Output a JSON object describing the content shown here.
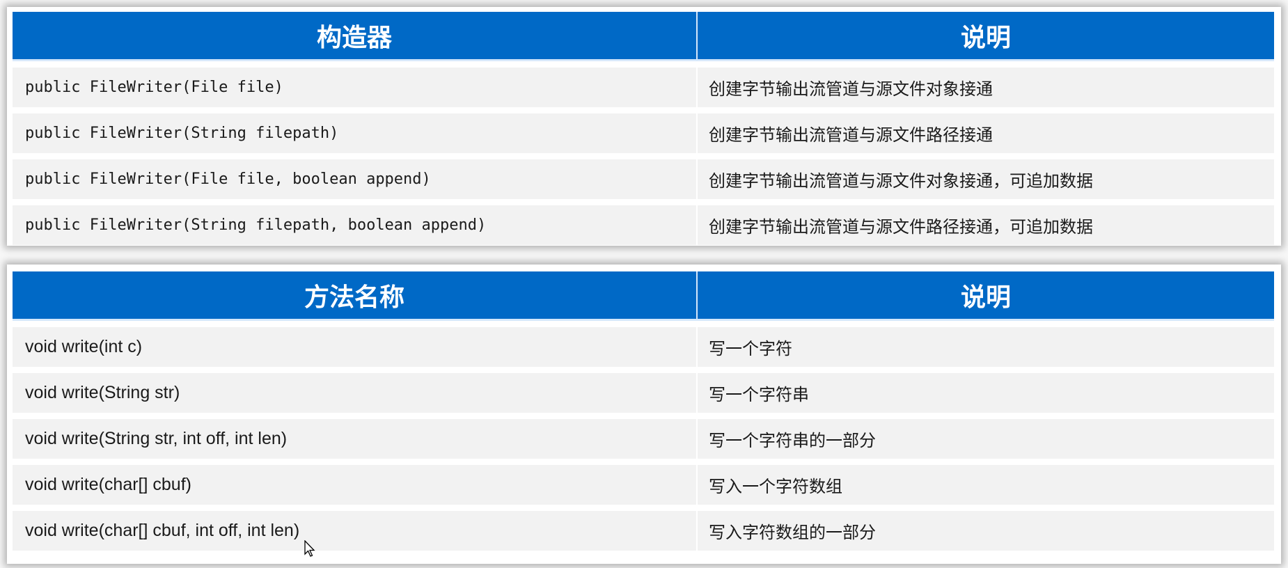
{
  "constructors_table": {
    "headers": [
      "构造器",
      "说明"
    ],
    "rows": [
      [
        "public FileWriter(File file)",
        "创建字节输出流管道与源文件对象接通"
      ],
      [
        "public FileWriter(String filepath)",
        "创建字节输出流管道与源文件路径接通"
      ],
      [
        "public FileWriter(File file, boolean append)",
        "创建字节输出流管道与源文件对象接通，可追加数据"
      ],
      [
        "public FileWriter(String filepath, boolean append)",
        "创建字节输出流管道与源文件路径接通，可追加数据"
      ]
    ]
  },
  "methods_table": {
    "headers": [
      "方法名称",
      "说明"
    ],
    "rows": [
      [
        "void write(int c)",
        "写一个字符"
      ],
      [
        "void write(String str)",
        "写一个字符串"
      ],
      [
        "void write(String str, int off, int len)",
        "写一个字符串的一部分"
      ],
      [
        "void write(char[] cbuf)",
        "写入一个字符数组"
      ],
      [
        "void write(char[] cbuf, int off, int len)",
        "写入字符数组的一部分"
      ]
    ]
  },
  "colors": {
    "header_bg": "#0069c6",
    "row_bg": "#f2f2f2"
  },
  "cursor_icon": "mouse-pointer-icon"
}
